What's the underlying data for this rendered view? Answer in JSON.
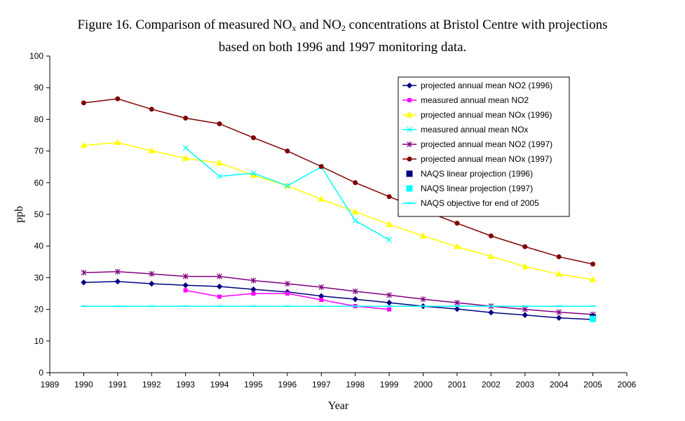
{
  "title_line1_parts": [
    "Figure 16. Comparison of measured NO",
    "x",
    " and NO",
    "2",
    " concentrations at Bristol Centre with projections"
  ],
  "title_line2": "based on both 1996 and 1997 monitoring data.",
  "chart_data": {
    "type": "line",
    "xlabel": "Year",
    "ylabel": "ppb",
    "xlim": [
      1989,
      2006
    ],
    "ylim": [
      0,
      100
    ],
    "x_ticks": [
      1989,
      1990,
      1991,
      1992,
      1993,
      1994,
      1995,
      1996,
      1997,
      1998,
      1999,
      2000,
      2001,
      2002,
      2003,
      2004,
      2005,
      2006
    ],
    "y_ticks": [
      0,
      10,
      20,
      30,
      40,
      50,
      60,
      70,
      80,
      90,
      100
    ],
    "legend_position": "top-right",
    "series": [
      {
        "name": "projected annual mean NO2 (1996)",
        "color": "#000080",
        "marker": "diamond",
        "line": true,
        "x": [
          1990,
          1991,
          1992,
          1993,
          1994,
          1995,
          1996,
          1997,
          1998,
          1999,
          2000,
          2001,
          2002,
          2003,
          2004,
          2005
        ],
        "y": [
          28.5,
          28.8,
          28.1,
          27.6,
          27.2,
          26.3,
          25.5,
          24.2,
          23.2,
          22.1,
          21.0,
          20.1,
          19.0,
          18.2,
          17.3,
          16.8
        ]
      },
      {
        "name": "measured annual mean NO2",
        "color": "#FF00FF",
        "marker": "square",
        "line": true,
        "x": [
          1993,
          1994,
          1995,
          1996,
          1997,
          1998,
          1999
        ],
        "y": [
          26,
          24,
          25,
          25,
          23,
          21,
          20
        ]
      },
      {
        "name": "projected annual mean NOx (1996)",
        "color": "#FFFF00",
        "marker": "triangle",
        "line": true,
        "x": [
          1990,
          1991,
          1992,
          1993,
          1994,
          1995,
          1996,
          1997,
          1998,
          1999,
          2000,
          2001,
          2002,
          2003,
          2004,
          2005
        ],
        "y": [
          71.8,
          72.7,
          70.1,
          67.7,
          66.2,
          62.3,
          59.0,
          54.8,
          50.8,
          46.8,
          43.2,
          39.8,
          36.7,
          33.5,
          31.1,
          29.4
        ]
      },
      {
        "name": "measured annual mean NOx",
        "color": "#00FFFF",
        "marker": "x",
        "line": true,
        "x": [
          1993,
          1994,
          1995,
          1996,
          1997,
          1998,
          1999
        ],
        "y": [
          71,
          62,
          63,
          59,
          65,
          48,
          42
        ]
      },
      {
        "name": "projected annual mean NO2 (1997)",
        "color": "#800080",
        "marker": "star",
        "line": true,
        "x": [
          1990,
          1991,
          1992,
          1993,
          1994,
          1995,
          1996,
          1997,
          1998,
          1999,
          2000,
          2001,
          2002,
          2003,
          2004,
          2005
        ],
        "y": [
          31.6,
          31.9,
          31.2,
          30.4,
          30.4,
          29.1,
          28.1,
          27.0,
          25.7,
          24.5,
          23.2,
          22.1,
          21.0,
          20.0,
          19.1,
          18.4
        ]
      },
      {
        "name": "projected annual mean NOx (1997)",
        "color": "#800000",
        "marker": "circle",
        "line": true,
        "x": [
          1990,
          1991,
          1992,
          1993,
          1994,
          1995,
          1996,
          1997,
          1998,
          1999,
          2000,
          2001,
          2002,
          2003,
          2004,
          2005
        ],
        "y": [
          85.2,
          86.5,
          83.2,
          80.4,
          78.6,
          74.2,
          70.0,
          65.1,
          60.0,
          55.6,
          51.3,
          47.2,
          43.2,
          39.8,
          36.6,
          34.3
        ]
      },
      {
        "name": "NAQS linear projection (1996)",
        "color": "#000080",
        "marker": "bigsquare",
        "line": false,
        "x": [
          2005
        ],
        "y": [
          17.5
        ]
      },
      {
        "name": "NAQS linear projection (1997)",
        "color": "#00FFFF",
        "marker": "bigsquare",
        "line": false,
        "x": [
          2005
        ],
        "y": [
          17.0
        ]
      },
      {
        "name": "NAQS objective for end of 2005",
        "color": "#00FFFF",
        "marker": "dash",
        "line": true,
        "x": [
          1990,
          1991,
          1992,
          1993,
          1994,
          1995,
          1996,
          1997,
          1998,
          1999,
          2000,
          2001,
          2002,
          2003,
          2004,
          2005
        ],
        "y": [
          21,
          21,
          21,
          21,
          21,
          21,
          21,
          21,
          21,
          21,
          21,
          21,
          21,
          21,
          21,
          21
        ]
      }
    ]
  }
}
